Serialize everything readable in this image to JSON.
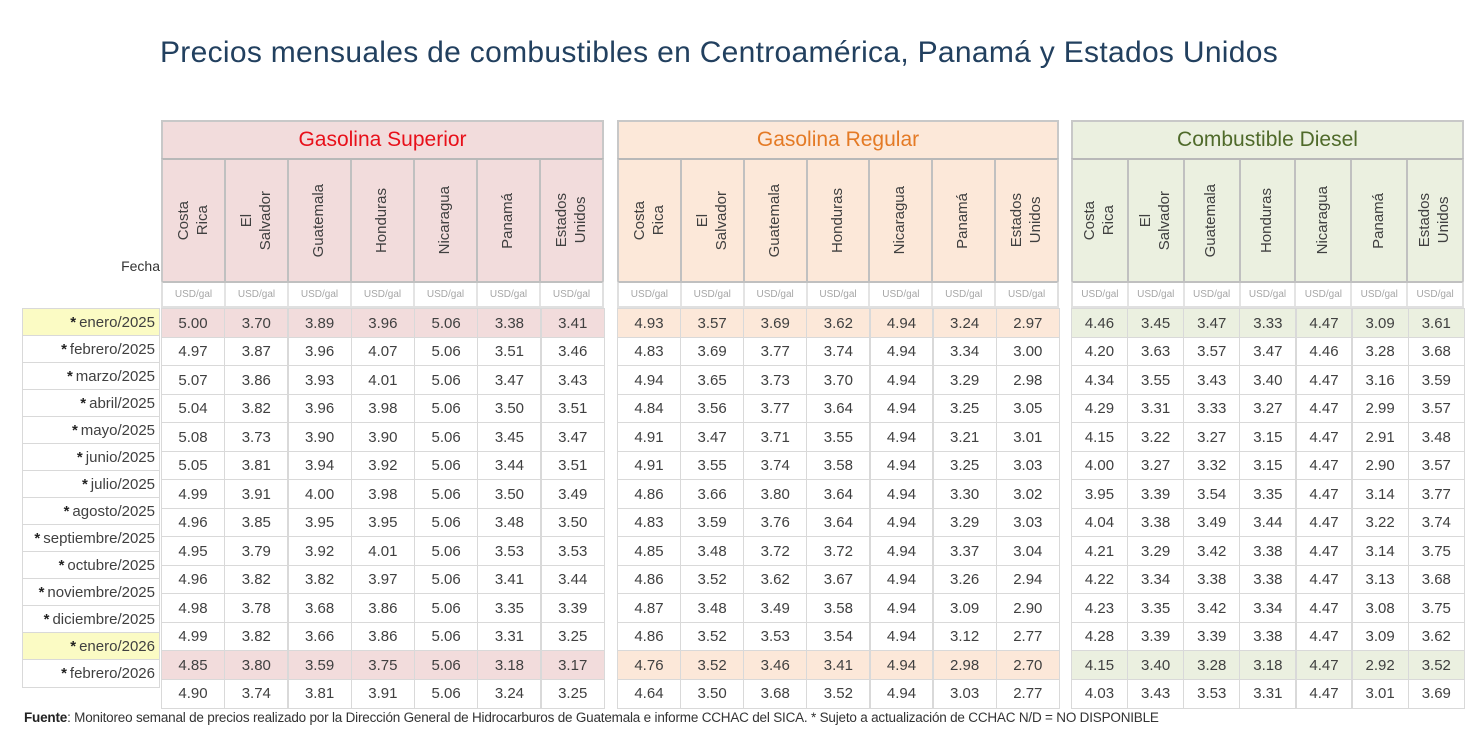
{
  "title": "Precios mensuales de combustibles en Centroamérica, Panamá y Estados Unidos",
  "fecha_label": "Fecha",
  "unit": "USD/gal",
  "countries": [
    "Costa\nRica",
    "El\nSalvador",
    "Guatemala",
    "Honduras",
    "Nicaragua",
    "Panamá",
    "Estados\nUnidos"
  ],
  "sections": {
    "superior": {
      "label": "Gasolina Superior",
      "color": "#e8101a",
      "bg": "#f2dcdc"
    },
    "regular": {
      "label": "Gasolina Regular",
      "color": "#e47a25",
      "bg": "#fce8d9"
    },
    "diesel": {
      "label": "Combustible Diesel",
      "color": "#4f6a2a",
      "bg": "#ebf0e0"
    }
  },
  "dates": [
    {
      "label": "enero/2025",
      "star": "*",
      "highlight": true
    },
    {
      "label": "febrero/2025",
      "star": "*",
      "highlight": false
    },
    {
      "label": "marzo/2025",
      "star": "*",
      "highlight": false
    },
    {
      "label": "abril/2025",
      "star": "*",
      "highlight": false
    },
    {
      "label": "mayo/2025",
      "star": "*",
      "highlight": false
    },
    {
      "label": "junio/2025",
      "star": "*",
      "highlight": false
    },
    {
      "label": "julio/2025",
      "star": "*",
      "highlight": false
    },
    {
      "label": "agosto/2025",
      "star": "*",
      "highlight": false
    },
    {
      "label": "septiembre/2025",
      "star": "*",
      "highlight": false
    },
    {
      "label": "octubre/2025",
      "star": "*",
      "highlight": false
    },
    {
      "label": "noviembre/2025",
      "star": "*",
      "highlight": false
    },
    {
      "label": "diciembre/2025",
      "star": "*",
      "highlight": false
    },
    {
      "label": "enero/2026",
      "star": "*",
      "highlight": true
    },
    {
      "label": "febrero/2026",
      "star": "*",
      "highlight": false
    }
  ],
  "data": {
    "superior": [
      [
        "5.00",
        "3.70",
        "3.89",
        "3.96",
        "5.06",
        "3.38",
        "3.41"
      ],
      [
        "4.97",
        "3.87",
        "3.96",
        "4.07",
        "5.06",
        "3.51",
        "3.46"
      ],
      [
        "5.07",
        "3.86",
        "3.93",
        "4.01",
        "5.06",
        "3.47",
        "3.43"
      ],
      [
        "5.04",
        "3.82",
        "3.96",
        "3.98",
        "5.06",
        "3.50",
        "3.51"
      ],
      [
        "5.08",
        "3.73",
        "3.90",
        "3.90",
        "5.06",
        "3.45",
        "3.47"
      ],
      [
        "5.05",
        "3.81",
        "3.94",
        "3.92",
        "5.06",
        "3.44",
        "3.51"
      ],
      [
        "4.99",
        "3.91",
        "4.00",
        "3.98",
        "5.06",
        "3.50",
        "3.49"
      ],
      [
        "4.96",
        "3.85",
        "3.95",
        "3.95",
        "5.06",
        "3.48",
        "3.50"
      ],
      [
        "4.95",
        "3.79",
        "3.92",
        "4.01",
        "5.06",
        "3.53",
        "3.53"
      ],
      [
        "4.96",
        "3.82",
        "3.82",
        "3.97",
        "5.06",
        "3.41",
        "3.44"
      ],
      [
        "4.98",
        "3.78",
        "3.68",
        "3.86",
        "5.06",
        "3.35",
        "3.39"
      ],
      [
        "4.99",
        "3.82",
        "3.66",
        "3.86",
        "5.06",
        "3.31",
        "3.25"
      ],
      [
        "4.85",
        "3.80",
        "3.59",
        "3.75",
        "5.06",
        "3.18",
        "3.17"
      ],
      [
        "4.90",
        "3.74",
        "3.81",
        "3.91",
        "5.06",
        "3.24",
        "3.25"
      ]
    ],
    "regular": [
      [
        "4.93",
        "3.57",
        "3.69",
        "3.62",
        "4.94",
        "3.24",
        "2.97"
      ],
      [
        "4.83",
        "3.69",
        "3.77",
        "3.74",
        "4.94",
        "3.34",
        "3.00"
      ],
      [
        "4.94",
        "3.65",
        "3.73",
        "3.70",
        "4.94",
        "3.29",
        "2.98"
      ],
      [
        "4.84",
        "3.56",
        "3.77",
        "3.64",
        "4.94",
        "3.25",
        "3.05"
      ],
      [
        "4.91",
        "3.47",
        "3.71",
        "3.55",
        "4.94",
        "3.21",
        "3.01"
      ],
      [
        "4.91",
        "3.55",
        "3.74",
        "3.58",
        "4.94",
        "3.25",
        "3.03"
      ],
      [
        "4.86",
        "3.66",
        "3.80",
        "3.64",
        "4.94",
        "3.30",
        "3.02"
      ],
      [
        "4.83",
        "3.59",
        "3.76",
        "3.64",
        "4.94",
        "3.29",
        "3.03"
      ],
      [
        "4.85",
        "3.48",
        "3.72",
        "3.72",
        "4.94",
        "3.37",
        "3.04"
      ],
      [
        "4.86",
        "3.52",
        "3.62",
        "3.67",
        "4.94",
        "3.26",
        "2.94"
      ],
      [
        "4.87",
        "3.48",
        "3.49",
        "3.58",
        "4.94",
        "3.09",
        "2.90"
      ],
      [
        "4.86",
        "3.52",
        "3.53",
        "3.54",
        "4.94",
        "3.12",
        "2.77"
      ],
      [
        "4.76",
        "3.52",
        "3.46",
        "3.41",
        "4.94",
        "2.98",
        "2.70"
      ],
      [
        "4.64",
        "3.50",
        "3.68",
        "3.52",
        "4.94",
        "3.03",
        "2.77"
      ]
    ],
    "diesel": [
      [
        "4.46",
        "3.45",
        "3.47",
        "3.33",
        "4.47",
        "3.09",
        "3.61"
      ],
      [
        "4.20",
        "3.63",
        "3.57",
        "3.47",
        "4.46",
        "3.28",
        "3.68"
      ],
      [
        "4.34",
        "3.55",
        "3.43",
        "3.40",
        "4.47",
        "3.16",
        "3.59"
      ],
      [
        "4.29",
        "3.31",
        "3.33",
        "3.27",
        "4.47",
        "2.99",
        "3.57"
      ],
      [
        "4.15",
        "3.22",
        "3.27",
        "3.15",
        "4.47",
        "2.91",
        "3.48"
      ],
      [
        "4.00",
        "3.27",
        "3.32",
        "3.15",
        "4.47",
        "2.90",
        "3.57"
      ],
      [
        "3.95",
        "3.39",
        "3.54",
        "3.35",
        "4.47",
        "3.14",
        "3.77"
      ],
      [
        "4.04",
        "3.38",
        "3.49",
        "3.44",
        "4.47",
        "3.22",
        "3.74"
      ],
      [
        "4.21",
        "3.29",
        "3.42",
        "3.38",
        "4.47",
        "3.14",
        "3.75"
      ],
      [
        "4.22",
        "3.34",
        "3.38",
        "3.38",
        "4.47",
        "3.13",
        "3.68"
      ],
      [
        "4.23",
        "3.35",
        "3.42",
        "3.34",
        "4.47",
        "3.08",
        "3.75"
      ],
      [
        "4.28",
        "3.39",
        "3.39",
        "3.38",
        "4.47",
        "3.09",
        "3.62"
      ],
      [
        "4.15",
        "3.40",
        "3.28",
        "3.18",
        "4.47",
        "2.92",
        "3.52"
      ],
      [
        "4.03",
        "3.43",
        "3.53",
        "3.31",
        "4.47",
        "3.01",
        "3.69"
      ]
    ]
  },
  "footer": {
    "label": "Fuente",
    "text": ": Monitoreo semanal de precios realizado por la Dirección General de Hidrocarburos de Guatemala e informe CCHAC del SICA. * Sujeto a actualización de CCHAC ",
    "note": "N/D = NO DISPONIBLE"
  }
}
